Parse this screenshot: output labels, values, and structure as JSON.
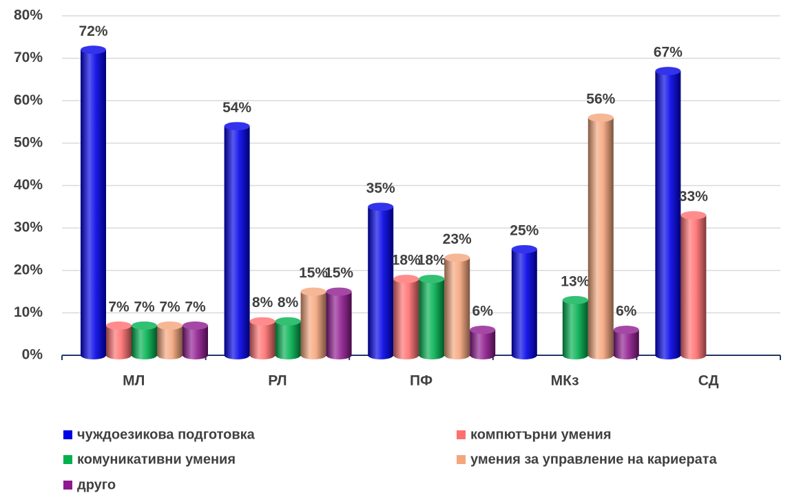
{
  "chart_data": {
    "type": "bar",
    "categories": [
      "МЛ",
      "РЛ",
      "ПФ",
      "МКз",
      "СД"
    ],
    "series": [
      {
        "name": "чуждоезикова подготовка",
        "color": "#0000e6",
        "values": [
          72,
          54,
          35,
          25,
          67
        ],
        "value_labels": [
          "72%",
          "54%",
          "35%",
          "25%",
          "67%"
        ]
      },
      {
        "name": "компютърни умения",
        "color": "#ff6f6f",
        "values": [
          7,
          8,
          18,
          null,
          33
        ],
        "value_labels": [
          "7%",
          "8%",
          "18%",
          null,
          "33%"
        ]
      },
      {
        "name": "комуникативни умения",
        "color": "#00b04f",
        "values": [
          7,
          8,
          18,
          13,
          null
        ],
        "value_labels": [
          "7%",
          "8%",
          "18%",
          "13%",
          null
        ]
      },
      {
        "name": "умения за управление на кариерата",
        "color": "#f4a57c",
        "values": [
          7,
          15,
          23,
          56,
          null
        ],
        "value_labels": [
          "7%",
          "15%",
          "23%",
          "56%",
          null
        ]
      },
      {
        "name": "друго",
        "color": "#8e1a8e",
        "values": [
          7,
          15,
          6,
          6,
          null
        ],
        "value_labels": [
          "7%",
          "15%",
          "6%",
          "6%",
          null
        ]
      }
    ],
    "ylim": [
      0,
      80
    ],
    "yticks": [
      {
        "value": 0,
        "label": "0%"
      },
      {
        "value": 10,
        "label": "10%"
      },
      {
        "value": 20,
        "label": "20%"
      },
      {
        "value": 30,
        "label": "30%"
      },
      {
        "value": 40,
        "label": "40%"
      },
      {
        "value": 50,
        "label": "50%"
      },
      {
        "value": 60,
        "label": "60%"
      },
      {
        "value": 70,
        "label": "70%"
      },
      {
        "value": 80,
        "label": "80%"
      }
    ],
    "grid": true,
    "legend": "bottom"
  }
}
